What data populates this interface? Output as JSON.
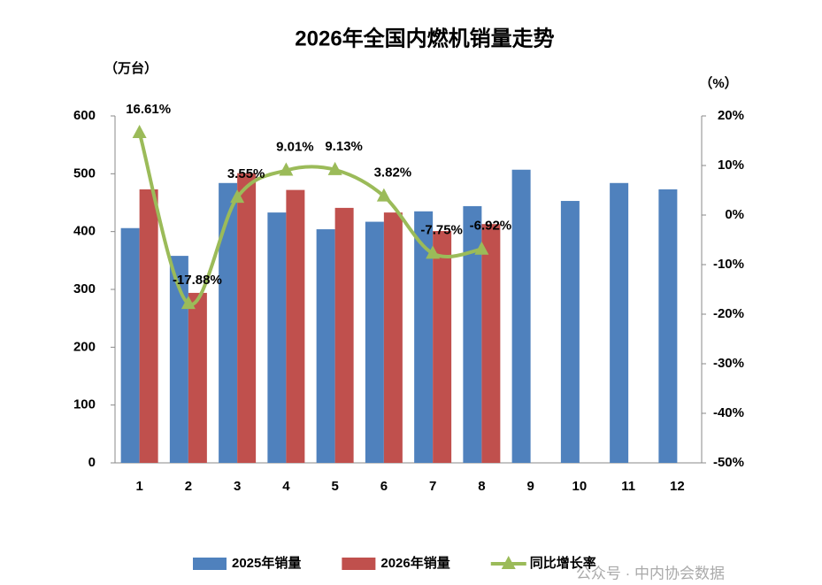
{
  "chart_data": {
    "type": "bar",
    "title": "2026年全国内燃机销量走势",
    "y_label": "（万台）",
    "y2_label": "（%）",
    "categories": [
      "1",
      "2",
      "3",
      "4",
      "5",
      "6",
      "7",
      "8",
      "9",
      "10",
      "11",
      "12"
    ],
    "series": [
      {
        "name": "2025年销量",
        "type": "bar",
        "color": "#4f81bd",
        "values": [
          406,
          358,
          484,
          433,
          404,
          417,
          435,
          444,
          507,
          453,
          484,
          473
        ]
      },
      {
        "name": "2026年销量",
        "type": "bar",
        "color": "#c0504d",
        "values": [
          473,
          294,
          501,
          472,
          441,
          433,
          401,
          413,
          null,
          null,
          null,
          null
        ]
      },
      {
        "name": "同比增长率",
        "type": "line",
        "axis": "y2",
        "color": "#9bbb59",
        "values": [
          16.61,
          -17.88,
          3.55,
          9.01,
          9.13,
          3.82,
          -7.75,
          -6.92,
          null,
          null,
          null,
          null
        ],
        "value_labels": [
          "16.61%",
          "-17.88%",
          "3.55%",
          "9.01%",
          "9.13%",
          "3.82%",
          "-7.75%",
          "-6.92%",
          null,
          null,
          null,
          null
        ]
      }
    ],
    "ylim": [
      0,
      600
    ],
    "yticks": [
      0,
      100,
      200,
      300,
      400,
      500,
      600
    ],
    "y2lim": [
      -50,
      20
    ],
    "y2ticks": [
      {
        "value": -50,
        "label": "-50%"
      },
      {
        "value": -40,
        "label": "-40%"
      },
      {
        "value": -30,
        "label": "-30%"
      },
      {
        "value": -20,
        "label": "-20%"
      },
      {
        "value": -10,
        "label": "-10%"
      },
      {
        "value": 0,
        "label": "0%"
      },
      {
        "value": 10,
        "label": "10%"
      },
      {
        "value": 20,
        "label": "20%"
      }
    ],
    "legend": "bottom",
    "watermark": "公众号 · 中内协会数据"
  }
}
